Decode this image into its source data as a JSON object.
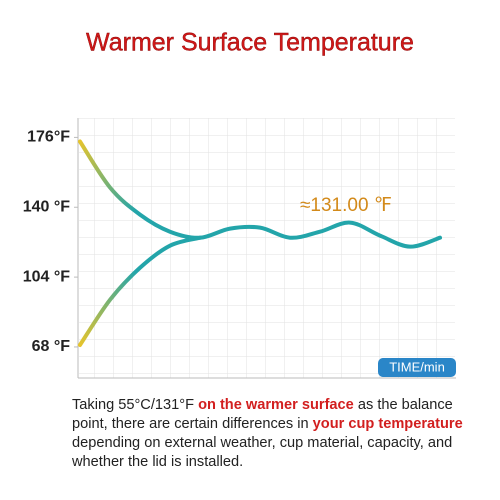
{
  "chart_data": {
    "type": "line",
    "title": "Warmer Surface Temperature",
    "categories": [
      null,
      null,
      null,
      null,
      null,
      null,
      null,
      null,
      null,
      null,
      null,
      null,
      null
    ],
    "series": [
      {
        "color": "#23a5aa",
        "values": [
          173.9,
          150.2,
          136.2,
          127.4,
          124.3,
          129.0,
          129.5,
          124.3,
          127.4,
          132.1,
          125.4,
          119.7,
          124.3
        ]
      },
      {
        "color": "#23a5aa",
        "values": [
          69.0,
          92.3,
          108.8,
          120.2,
          124.3,
          null,
          null,
          null,
          null,
          null,
          null,
          null,
          null
        ]
      }
    ],
    "ylim": [
      52,
      186
    ],
    "yticks": [
      {
        "value": 68,
        "label": "68 °F"
      },
      {
        "value": 104,
        "label": "104 °F"
      },
      {
        "value": 140,
        "label": "140 °F"
      },
      {
        "value": 176,
        "label": "176°F"
      }
    ],
    "annotation": "≈131.00 ℉",
    "x_label": "TIME/min",
    "description": [
      {
        "text": "Taking 55°C/131°F ",
        "emphasis": false
      },
      {
        "text": "on the warmer surface",
        "emphasis": true
      },
      {
        "text": " as the balance point, there are certain differences in ",
        "emphasis": false
      },
      {
        "text": "your cup temperature",
        "emphasis": true
      },
      {
        "text": " depending on external weather, cup material, capacity, and whether the lid is installed.",
        "emphasis": false
      }
    ]
  }
}
